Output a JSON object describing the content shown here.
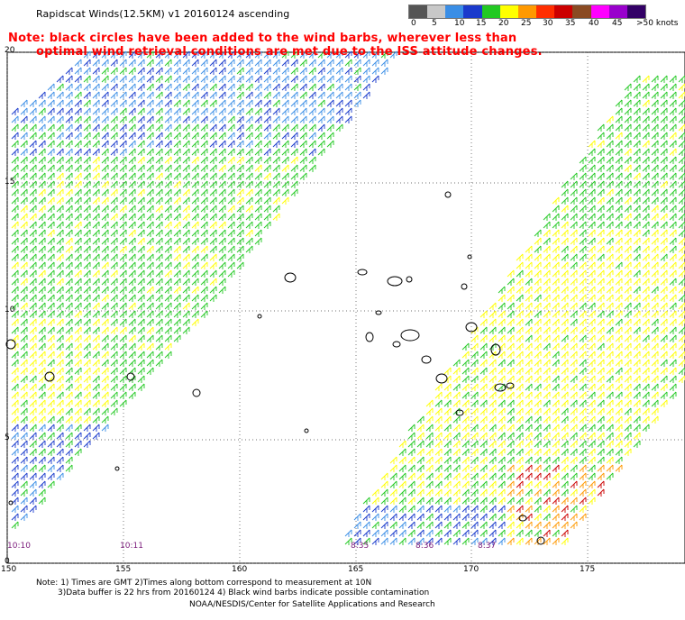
{
  "title": "Rapidscat Winds(12.5KM) v1 20160124 ascending",
  "note": {
    "line1": "Note: black circles have been added to the wind barbs, wherever less than",
    "line2": "optimal wind retrieval conditions are met due to the ISS attitude changes."
  },
  "legend": {
    "colors": [
      "#555555",
      "#c8c8c8",
      "#3a8ee6",
      "#1a3acc",
      "#22c922",
      "#ffff00",
      "#ff9900",
      "#ff2e00",
      "#cc0000",
      "#8a4a22",
      "#ff00ff",
      "#9900cc",
      "#330066"
    ],
    "labels": [
      "0",
      "5",
      "10",
      "15",
      "20",
      "25",
      "30",
      "35",
      "40",
      "45",
      ">50 knots"
    ]
  },
  "axes": {
    "lat_labels": [
      "20",
      "15",
      "10",
      "5",
      "0"
    ],
    "lon_labels": [
      "150",
      "155",
      "160",
      "165",
      "170",
      "175"
    ]
  },
  "pass_times": [
    "10:10",
    "10:11",
    "8:35",
    "8:36",
    "8:37"
  ],
  "footnotes": {
    "line1": "Note: 1) Times are GMT 2)Times along bottom correspond to measurement at 10N",
    "line2": "3)Data buffer is 22 hrs from 20160124 4) Black wind barbs indicate possible contamination",
    "line3": "NOAA/NESDIS/Center for Satellite Applications and Research"
  }
}
